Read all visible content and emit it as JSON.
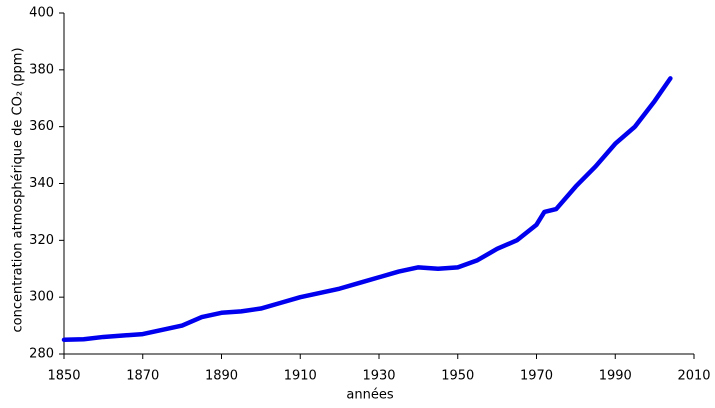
{
  "chart_data": {
    "type": "line",
    "x_label": "années",
    "y_label": "concentration atmosphérique de CO₂ (ppm)",
    "x": [
      1850,
      1855,
      1860,
      1865,
      1870,
      1875,
      1880,
      1885,
      1890,
      1895,
      1900,
      1905,
      1910,
      1915,
      1920,
      1925,
      1930,
      1935,
      1940,
      1945,
      1950,
      1955,
      1960,
      1965,
      1970,
      1972,
      1975,
      1980,
      1985,
      1990,
      1995,
      2000,
      2004
    ],
    "series": [
      {
        "name": "CO₂",
        "color": "#0000ee",
        "values": [
          285,
          285.2,
          286,
          286.5,
          287,
          288.5,
          290,
          293,
          294.5,
          295,
          296,
          298,
          300,
          301.5,
          303,
          305,
          307,
          309,
          310.5,
          310,
          310.5,
          313,
          317,
          320,
          325.5,
          330,
          331,
          339,
          346,
          354,
          360,
          369,
          377
        ]
      }
    ],
    "xlim": [
      1850,
      2010
    ],
    "xticks": [
      1850,
      1870,
      1890,
      1910,
      1930,
      1950,
      1970,
      1990,
      2010
    ],
    "ylim": [
      280,
      400
    ],
    "yticks": [
      280,
      300,
      320,
      340,
      360,
      380,
      400
    ],
    "grid": false
  }
}
